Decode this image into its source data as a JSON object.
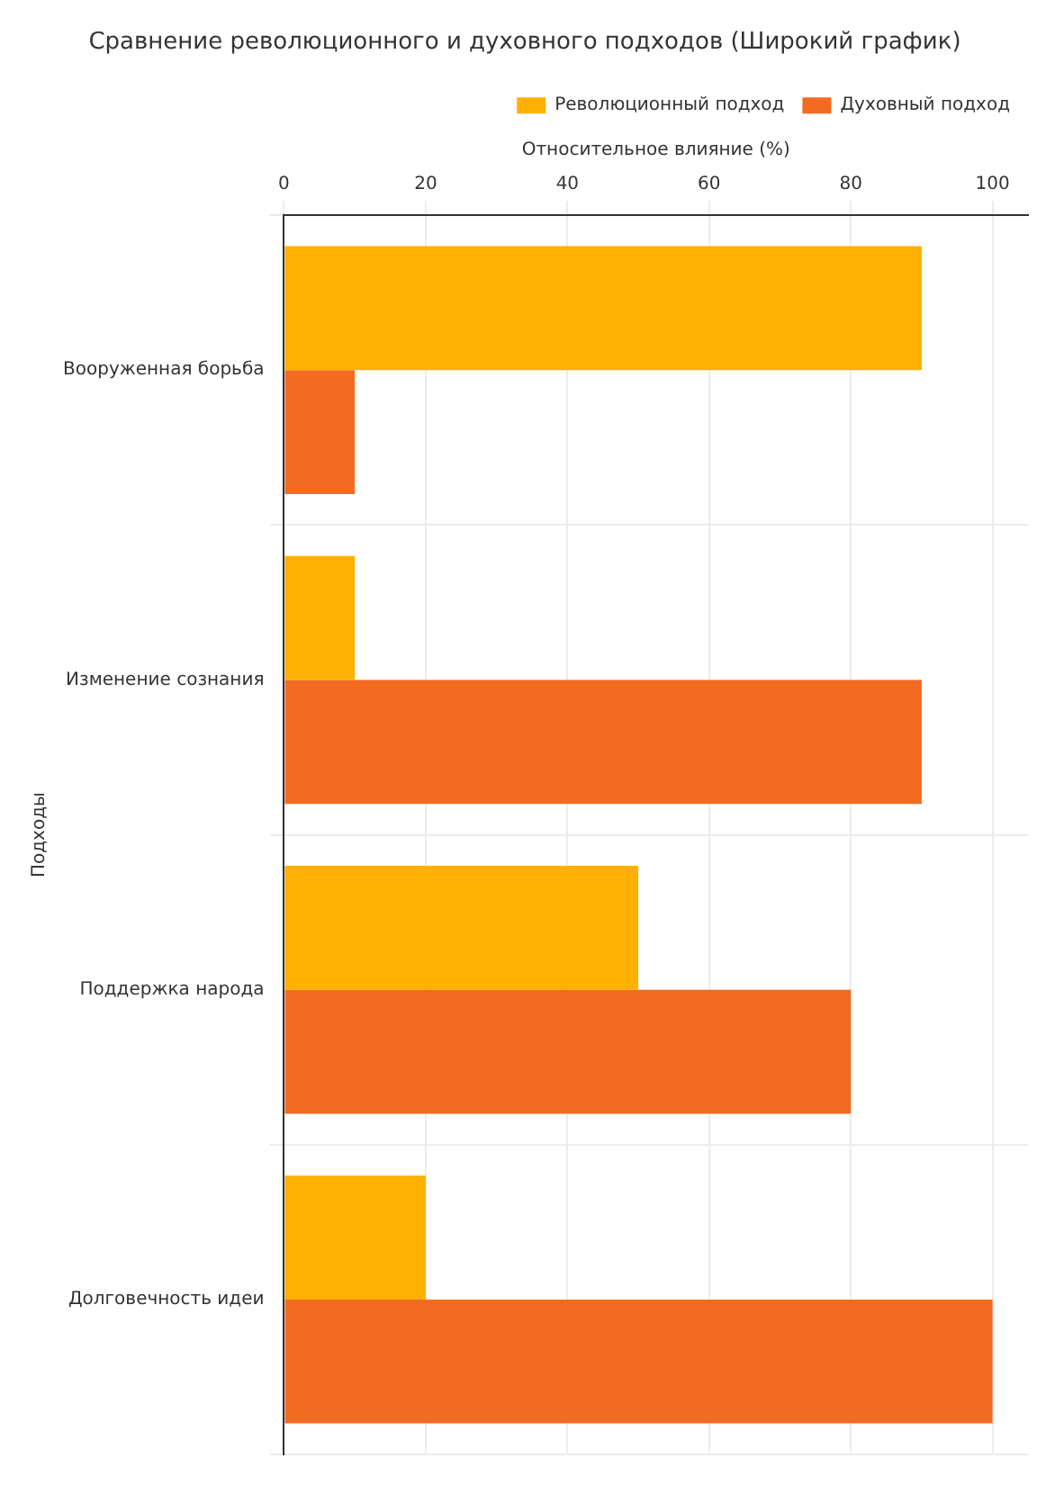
{
  "chart_data": {
    "type": "bar",
    "orientation": "horizontal",
    "title": "Сравнение революционного и духовного подходов (Широкий график)",
    "xlabel": "Относительное влияние (%)",
    "ylabel": "Подходы",
    "categories": [
      "Вооруженная борьба",
      "Изменение сознания",
      "Поддержка народа",
      "Долговечность идеи"
    ],
    "series": [
      {
        "name": "Революционный подход",
        "color": "#ffb000",
        "values": [
          90,
          10,
          50,
          20
        ]
      },
      {
        "name": "Духовный подход",
        "color": "#f26b21",
        "values": [
          10,
          90,
          80,
          100
        ]
      }
    ],
    "xlim": [
      0,
      105
    ],
    "xticks": [
      0,
      20,
      40,
      60,
      80,
      100
    ],
    "grid": true,
    "legend": "top right"
  }
}
